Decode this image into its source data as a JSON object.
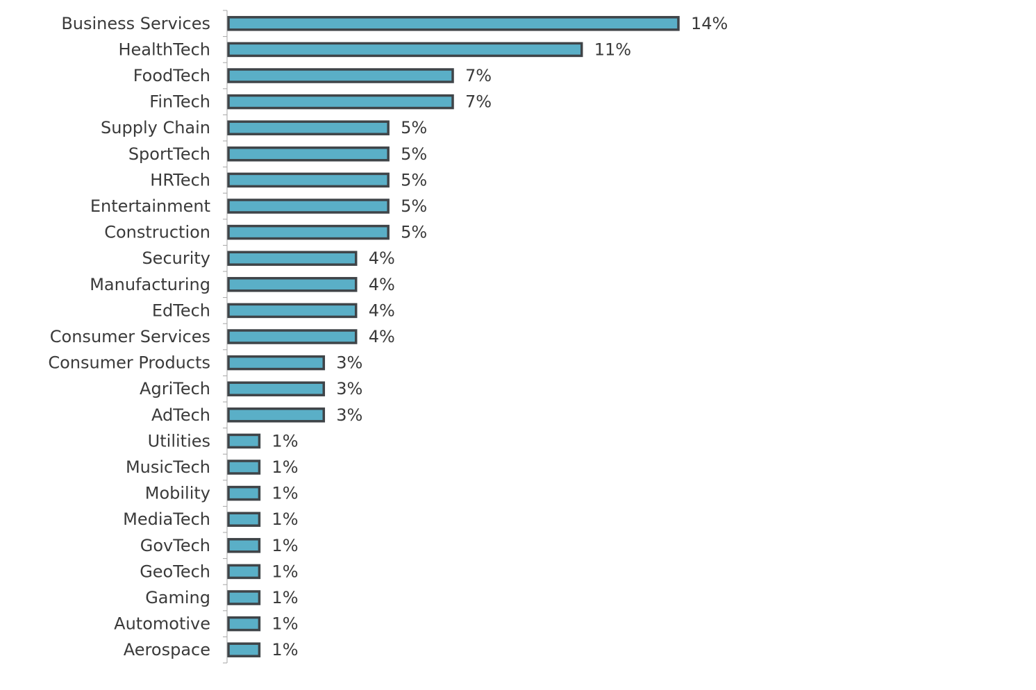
{
  "chart_data": {
    "type": "bar",
    "orientation": "horizontal",
    "categories": [
      "Business Services",
      "HealthTech",
      "FoodTech",
      "FinTech",
      "Supply Chain",
      "SportTech",
      "HRTech",
      "Entertainment",
      "Construction",
      "Security",
      "Manufacturing",
      "EdTech",
      "Consumer Services",
      "Consumer Products",
      "AgriTech",
      "AdTech",
      "Utilities",
      "MusicTech",
      "Mobility",
      "MediaTech",
      "GovTech",
      "GeoTech",
      "Gaming",
      "Automotive",
      "Aerospace"
    ],
    "values": [
      14,
      11,
      7,
      7,
      5,
      5,
      5,
      5,
      5,
      4,
      4,
      4,
      4,
      3,
      3,
      3,
      1,
      1,
      1,
      1,
      1,
      1,
      1,
      1,
      1
    ],
    "value_labels": [
      "14%",
      "11%",
      "7%",
      "7%",
      "5%",
      "5%",
      "5%",
      "5%",
      "5%",
      "4%",
      "4%",
      "4%",
      "4%",
      "3%",
      "3%",
      "3%",
      "1%",
      "1%",
      "1%",
      "1%",
      "1%",
      "1%",
      "1%",
      "1%",
      "1%"
    ],
    "unit": "%",
    "title": "",
    "xlabel": "",
    "ylabel": "",
    "grid": false,
    "legend": "none",
    "bar_color": "#5aafc7",
    "bar_outline_color": "#3f4448",
    "text_color": "#3a3a3a",
    "axis_color": "#a6a6a6"
  }
}
